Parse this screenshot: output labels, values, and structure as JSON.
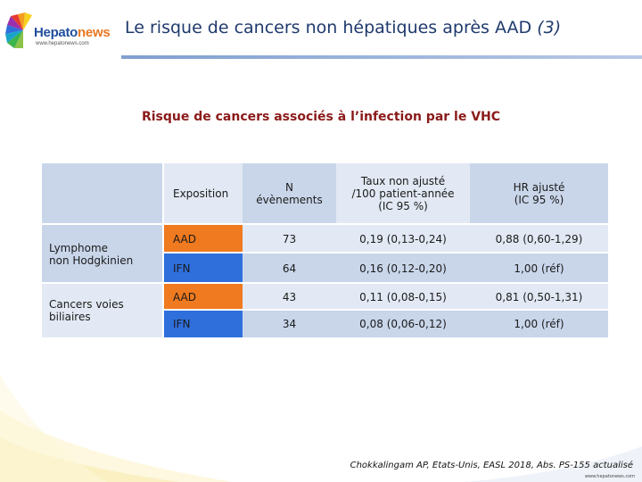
{
  "header": {
    "logo_main": "Hepato",
    "logo_accent": "news",
    "logo_url": "www.hepatonews.com",
    "title": "Le risque de cancers non hépatiques après AAD",
    "title_suffix": "(3)"
  },
  "subtitle": "Risque de cancers associés à l’infection par le VHC",
  "table": {
    "headers": {
      "exposition": "Exposition",
      "n_line1": "N",
      "n_line2": "évènements",
      "taux_line1": "Taux non ajusté",
      "taux_line2": "/100 patient-année",
      "taux_line3": "(IC 95 %)",
      "hr_line1": "HR ajusté",
      "hr_line2": "(IC 95 %)"
    },
    "groups": [
      {
        "label_line1": "Lymphome",
        "label_line2": "non Hodgkinien",
        "rows": [
          {
            "exposition": "AAD",
            "n": "73",
            "taux": "0,19 (0,13-0,24)",
            "hr": "0,88 (0,60-1,29)"
          },
          {
            "exposition": "IFN",
            "n": "64",
            "taux": "0,16 (0,12-0,20)",
            "hr": "1,00 (réf)"
          }
        ]
      },
      {
        "label_line1": "Cancers voies",
        "label_line2": "biliaires",
        "rows": [
          {
            "exposition": "AAD",
            "n": "43",
            "taux": "0,11 (0,08-0,15)",
            "hr": "0,81 (0,50-1,31)"
          },
          {
            "exposition": "IFN",
            "n": "34",
            "taux": "0,08 (0,06-0,12)",
            "hr": "1,00 (réf)"
          }
        ]
      }
    ]
  },
  "colors": {
    "aad": "#f07a1f",
    "ifn": "#2f6fdc",
    "title": "#1f3a6d",
    "subtitle": "#8b1a1a"
  },
  "footer": {
    "citation": "Chokkalingam AP, Etats-Unis, EASL 2018, Abs. PS-155 actualisé",
    "url": "www.hepatonews.com"
  }
}
